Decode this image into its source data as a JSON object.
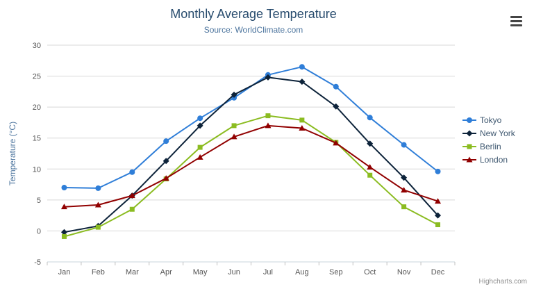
{
  "chart": {
    "credit": "Highcharts.com"
  },
  "chart_data": {
    "type": "line",
    "title": "Monthly Average Temperature",
    "subtitle": "Source: WorldClimate.com",
    "categories": [
      "Jan",
      "Feb",
      "Mar",
      "Apr",
      "May",
      "Jun",
      "Jul",
      "Aug",
      "Sep",
      "Oct",
      "Nov",
      "Dec"
    ],
    "xlabel": "",
    "ylabel": "Temperature (°C)",
    "ylim": [
      -5,
      30
    ],
    "ytick": 5,
    "grid": true,
    "legend_position": "right",
    "series": [
      {
        "name": "Tokyo",
        "color": "#2f7ed8",
        "marker": "circle",
        "values": [
          7.0,
          6.9,
          9.5,
          14.5,
          18.2,
          21.5,
          25.2,
          26.5,
          23.3,
          18.3,
          13.9,
          9.6
        ]
      },
      {
        "name": "New York",
        "color": "#0d233a",
        "marker": "diamond",
        "values": [
          -0.2,
          0.8,
          5.7,
          11.3,
          17.0,
          22.0,
          24.8,
          24.1,
          20.1,
          14.1,
          8.6,
          2.5
        ]
      },
      {
        "name": "Berlin",
        "color": "#8bbc21",
        "marker": "square",
        "values": [
          -0.9,
          0.6,
          3.5,
          8.4,
          13.5,
          17.0,
          18.6,
          17.9,
          14.3,
          9.0,
          3.9,
          1.0
        ]
      },
      {
        "name": "London",
        "color": "#910000",
        "marker": "triangle",
        "values": [
          3.9,
          4.2,
          5.7,
          8.5,
          11.9,
          15.2,
          17.0,
          16.6,
          14.2,
          10.3,
          6.6,
          4.8
        ]
      }
    ]
  }
}
